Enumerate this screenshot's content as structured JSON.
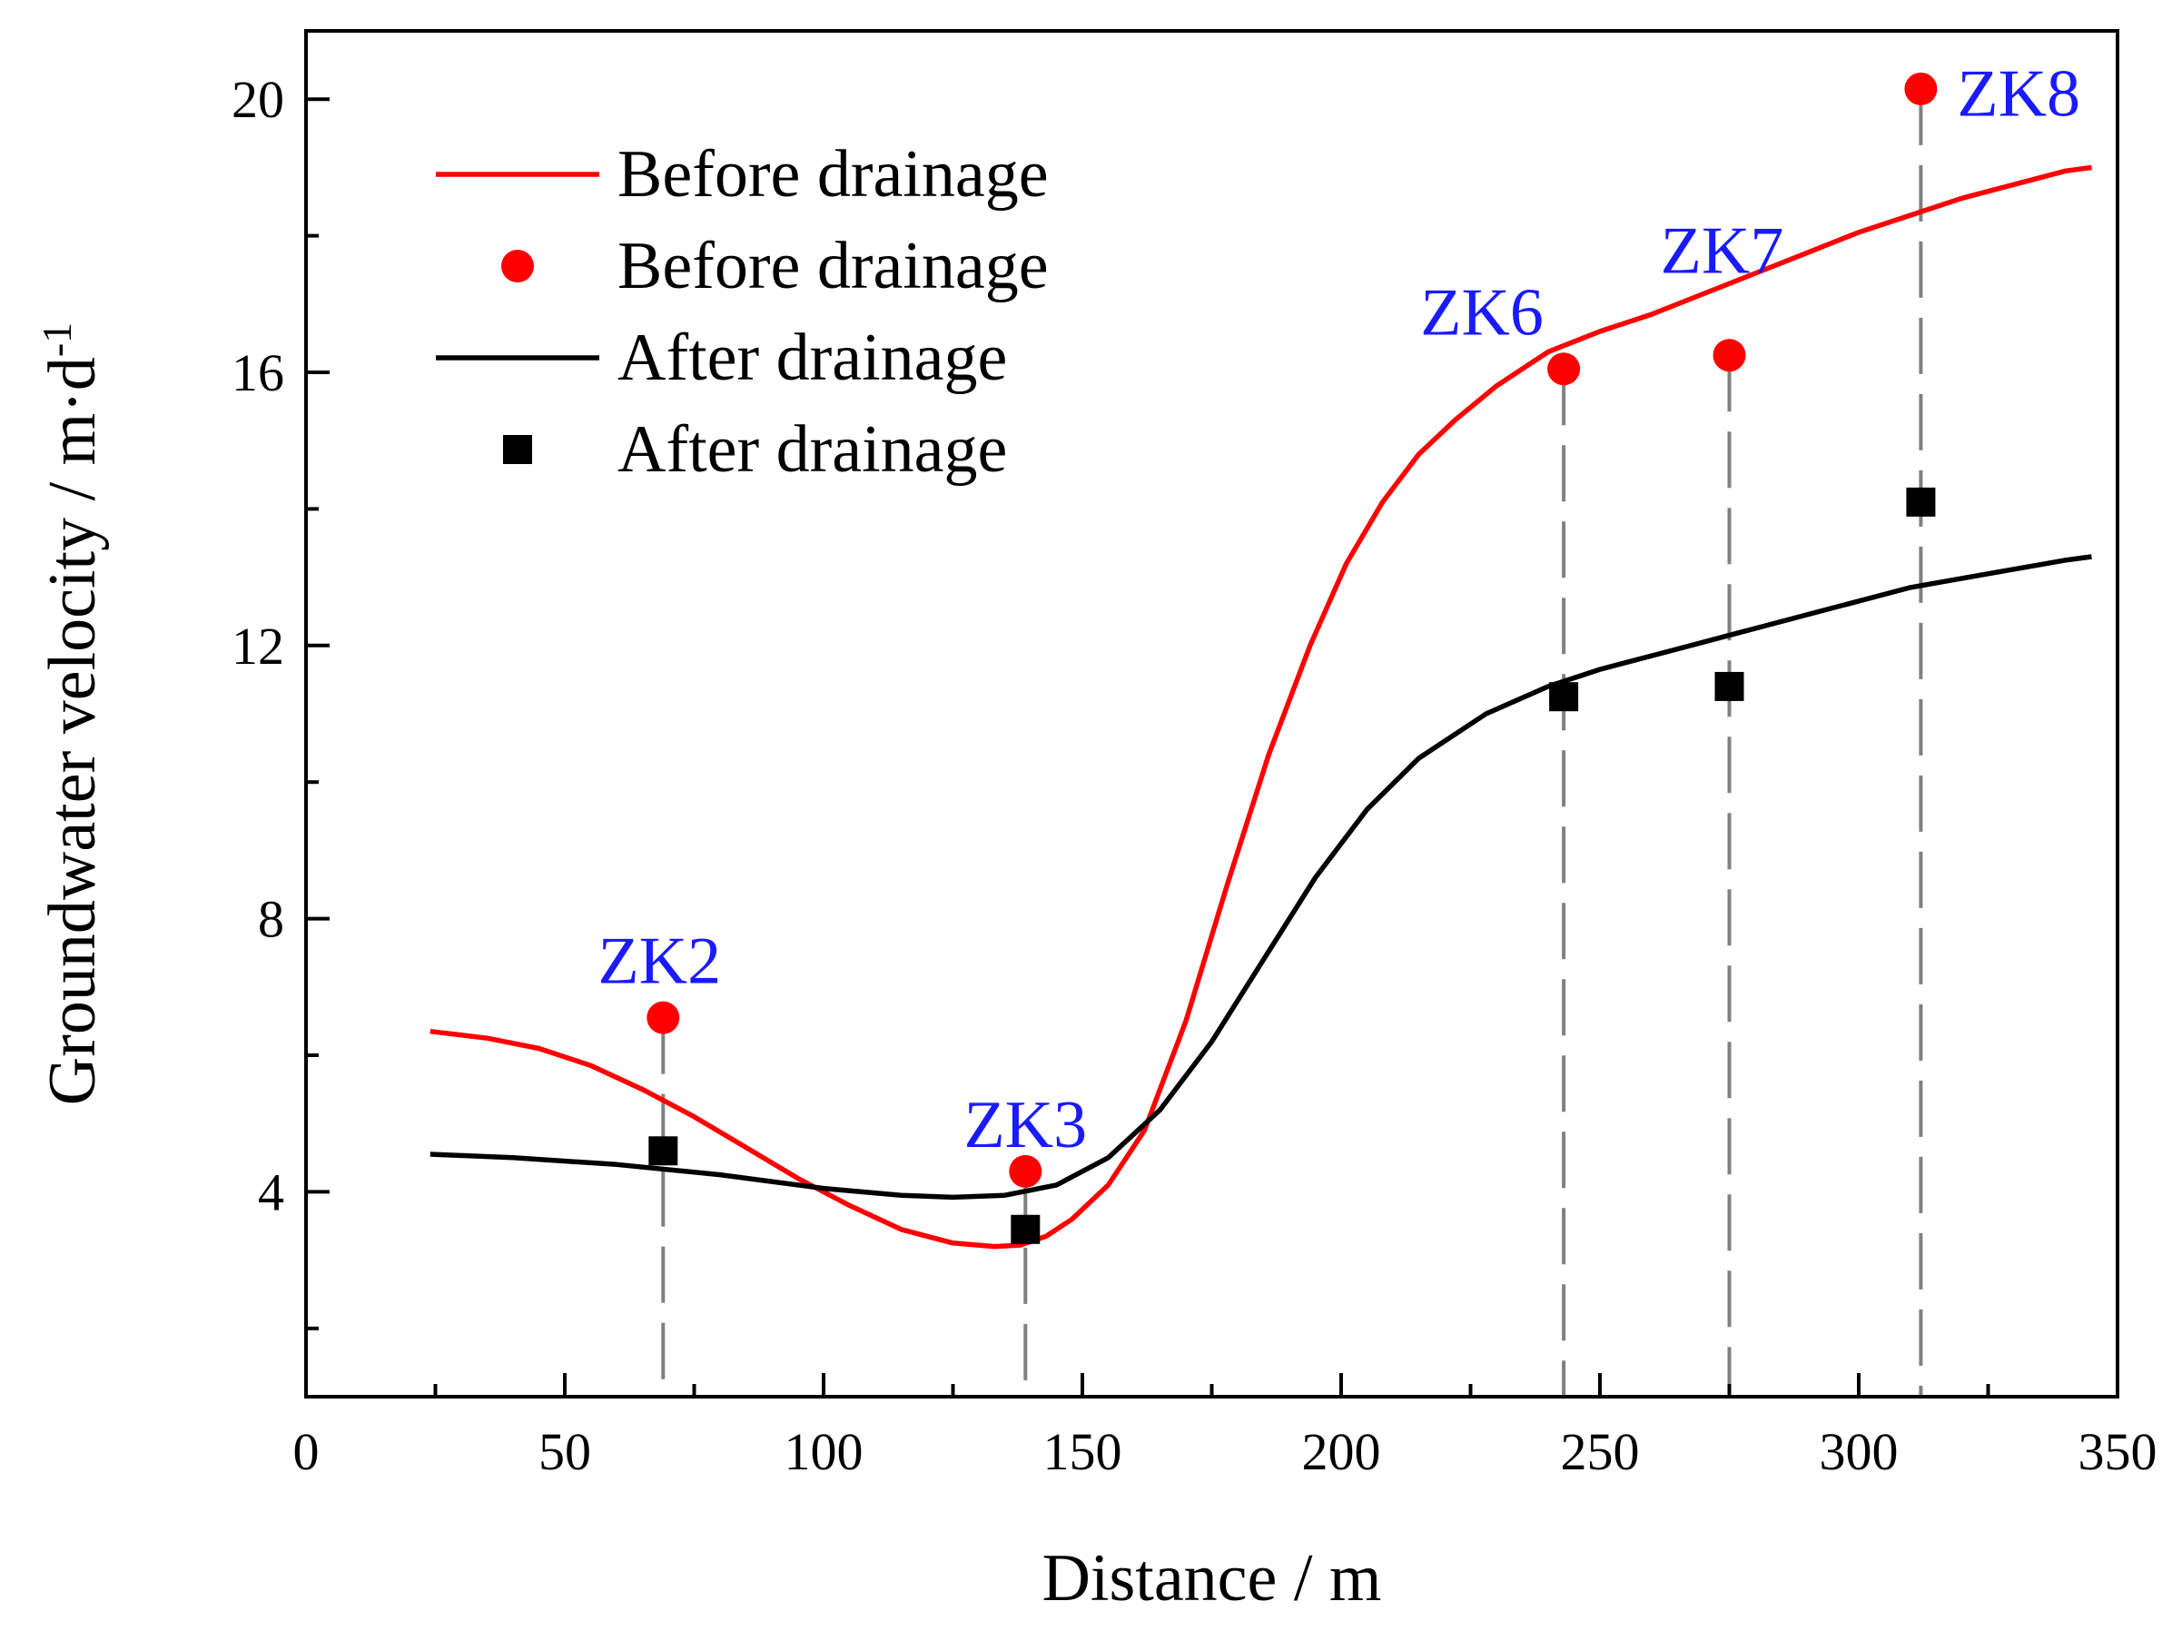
{
  "chart_data": {
    "type": "line",
    "title": "",
    "xlabel": "Distance / m",
    "ylabel": "Groundwater velocity / m·d",
    "ylabel_superscript": "-1",
    "xlim": [
      0,
      350
    ],
    "ylim": [
      1,
      21
    ],
    "x_ticks": [
      0,
      50,
      100,
      150,
      200,
      250,
      300,
      350
    ],
    "x_tick_labels": [
      "0",
      "50",
      "100",
      "150",
      "200",
      "250",
      "300",
      "350"
    ],
    "y_ticks": [
      4,
      8,
      12,
      16,
      20
    ],
    "y_tick_labels": [
      "4",
      "8",
      "12",
      "16",
      "20"
    ],
    "grid": false,
    "legend": "top-left",
    "colors": {
      "before": "#ff0000",
      "after": "#000000",
      "label": "#1a1aff",
      "guide": "#808080"
    },
    "series": [
      {
        "name": "Before drainage",
        "kind": "line",
        "color": "#ff0000",
        "x": [
          24,
          35,
          45,
          55,
          65,
          75,
          85,
          95,
          105,
          115,
          125,
          133,
          138,
          143,
          148,
          155,
          162,
          170,
          178,
          186,
          194,
          201,
          208,
          215,
          222,
          230,
          240,
          250,
          260,
          270,
          280,
          290,
          300,
          310,
          320,
          330,
          340,
          345
        ],
        "y": [
          6.35,
          6.25,
          6.1,
          5.85,
          5.5,
          5.1,
          4.65,
          4.2,
          3.8,
          3.45,
          3.25,
          3.2,
          3.22,
          3.35,
          3.6,
          4.1,
          4.9,
          6.5,
          8.5,
          10.4,
          12.0,
          13.2,
          14.1,
          14.8,
          15.3,
          15.8,
          16.3,
          16.6,
          16.85,
          17.15,
          17.45,
          17.75,
          18.05,
          18.3,
          18.55,
          18.75,
          18.95,
          19.0
        ]
      },
      {
        "name": "Before drainage",
        "kind": "scatter",
        "marker": "circle",
        "color": "#ff0000",
        "x": [
          69,
          139,
          243,
          275,
          312
        ],
        "y": [
          6.55,
          4.3,
          16.05,
          16.25,
          20.15
        ]
      },
      {
        "name": "After drainage",
        "kind": "line",
        "color": "#000000",
        "x": [
          24,
          40,
          60,
          80,
          100,
          115,
          125,
          135,
          145,
          155,
          165,
          175,
          185,
          195,
          205,
          215,
          228,
          240,
          250,
          265,
          280,
          295,
          310,
          325,
          340,
          345
        ],
        "y": [
          4.55,
          4.5,
          4.4,
          4.25,
          4.05,
          3.95,
          3.92,
          3.95,
          4.1,
          4.5,
          5.2,
          6.2,
          7.4,
          8.6,
          9.6,
          10.35,
          11.0,
          11.4,
          11.65,
          11.95,
          12.25,
          12.55,
          12.85,
          13.05,
          13.25,
          13.3
        ]
      },
      {
        "name": "After drainage",
        "kind": "scatter",
        "marker": "square",
        "color": "#000000",
        "x": [
          69,
          139,
          243,
          275,
          312
        ],
        "y": [
          4.6,
          3.45,
          11.25,
          11.4,
          14.1
        ]
      }
    ],
    "boreholes": [
      {
        "label": "ZK2",
        "x": 69,
        "label_y": 7.4
      },
      {
        "label": "ZK3",
        "x": 139,
        "label_y": 5.0
      },
      {
        "label": "ZK6",
        "x": 243,
        "label_y": 16.9
      },
      {
        "label": "ZK7",
        "x": 275,
        "label_y": 17.8
      },
      {
        "label": "ZK8",
        "x": 312,
        "label_y": 20.1
      }
    ]
  }
}
